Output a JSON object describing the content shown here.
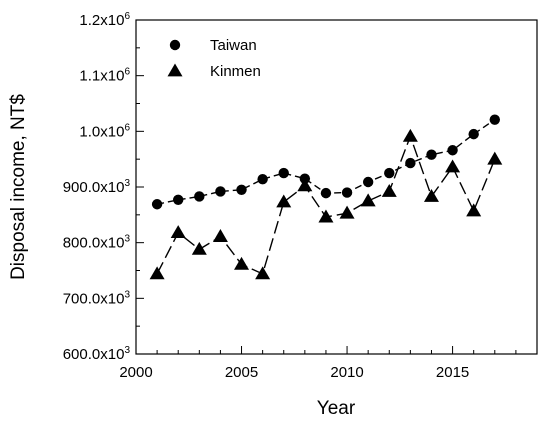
{
  "chart_data": {
    "type": "line",
    "title": "",
    "xlabel": "Year",
    "ylabel": "Disposal income, NT$",
    "xlim": [
      2000,
      2019
    ],
    "ylim": [
      600000,
      1200000
    ],
    "x_ticks": [
      {
        "value": 2000,
        "label": "2000"
      },
      {
        "value": 2005,
        "label": "2005"
      },
      {
        "value": 2010,
        "label": "2010"
      },
      {
        "value": 2015,
        "label": "2015"
      }
    ],
    "y_ticks": [
      {
        "value": 600000,
        "mantissa": "600.0x10",
        "exp": "3"
      },
      {
        "value": 700000,
        "mantissa": "700.0x10",
        "exp": "3"
      },
      {
        "value": 800000,
        "mantissa": "800.0x10",
        "exp": "3"
      },
      {
        "value": 900000,
        "mantissa": "900.0x10",
        "exp": "3"
      },
      {
        "value": 1000000,
        "mantissa": "1.0x10",
        "exp": "6"
      },
      {
        "value": 1100000,
        "mantissa": "1.1x10",
        "exp": "6"
      },
      {
        "value": 1200000,
        "mantissa": "1.2x10",
        "exp": "6"
      }
    ],
    "grid": false,
    "legend_position": "top-left",
    "series": [
      {
        "name": "Taiwan",
        "marker": "circle",
        "line": "dashed-short",
        "color": "#000000",
        "x": [
          2001,
          2002,
          2003,
          2004,
          2005,
          2006,
          2007,
          2008,
          2009,
          2010,
          2011,
          2012,
          2013,
          2014,
          2015,
          2016,
          2017
        ],
        "y": [
          869000,
          877000,
          883000,
          892000,
          895000,
          914000,
          925000,
          915000,
          889000,
          890000,
          909000,
          925000,
          943000,
          958000,
          966000,
          995000,
          1021000
        ]
      },
      {
        "name": "Kinmen",
        "marker": "triangle",
        "line": "dashed-long",
        "color": "#000000",
        "x": [
          2001,
          2002,
          2003,
          2004,
          2005,
          2006,
          2007,
          2008,
          2009,
          2010,
          2011,
          2012,
          2013,
          2014,
          2015,
          2016,
          2017
        ],
        "y": [
          744000,
          818000,
          788000,
          811000,
          761000,
          744000,
          873000,
          902000,
          846000,
          853000,
          875000,
          892000,
          991000,
          883000,
          936000,
          857000,
          950000
        ]
      }
    ]
  }
}
